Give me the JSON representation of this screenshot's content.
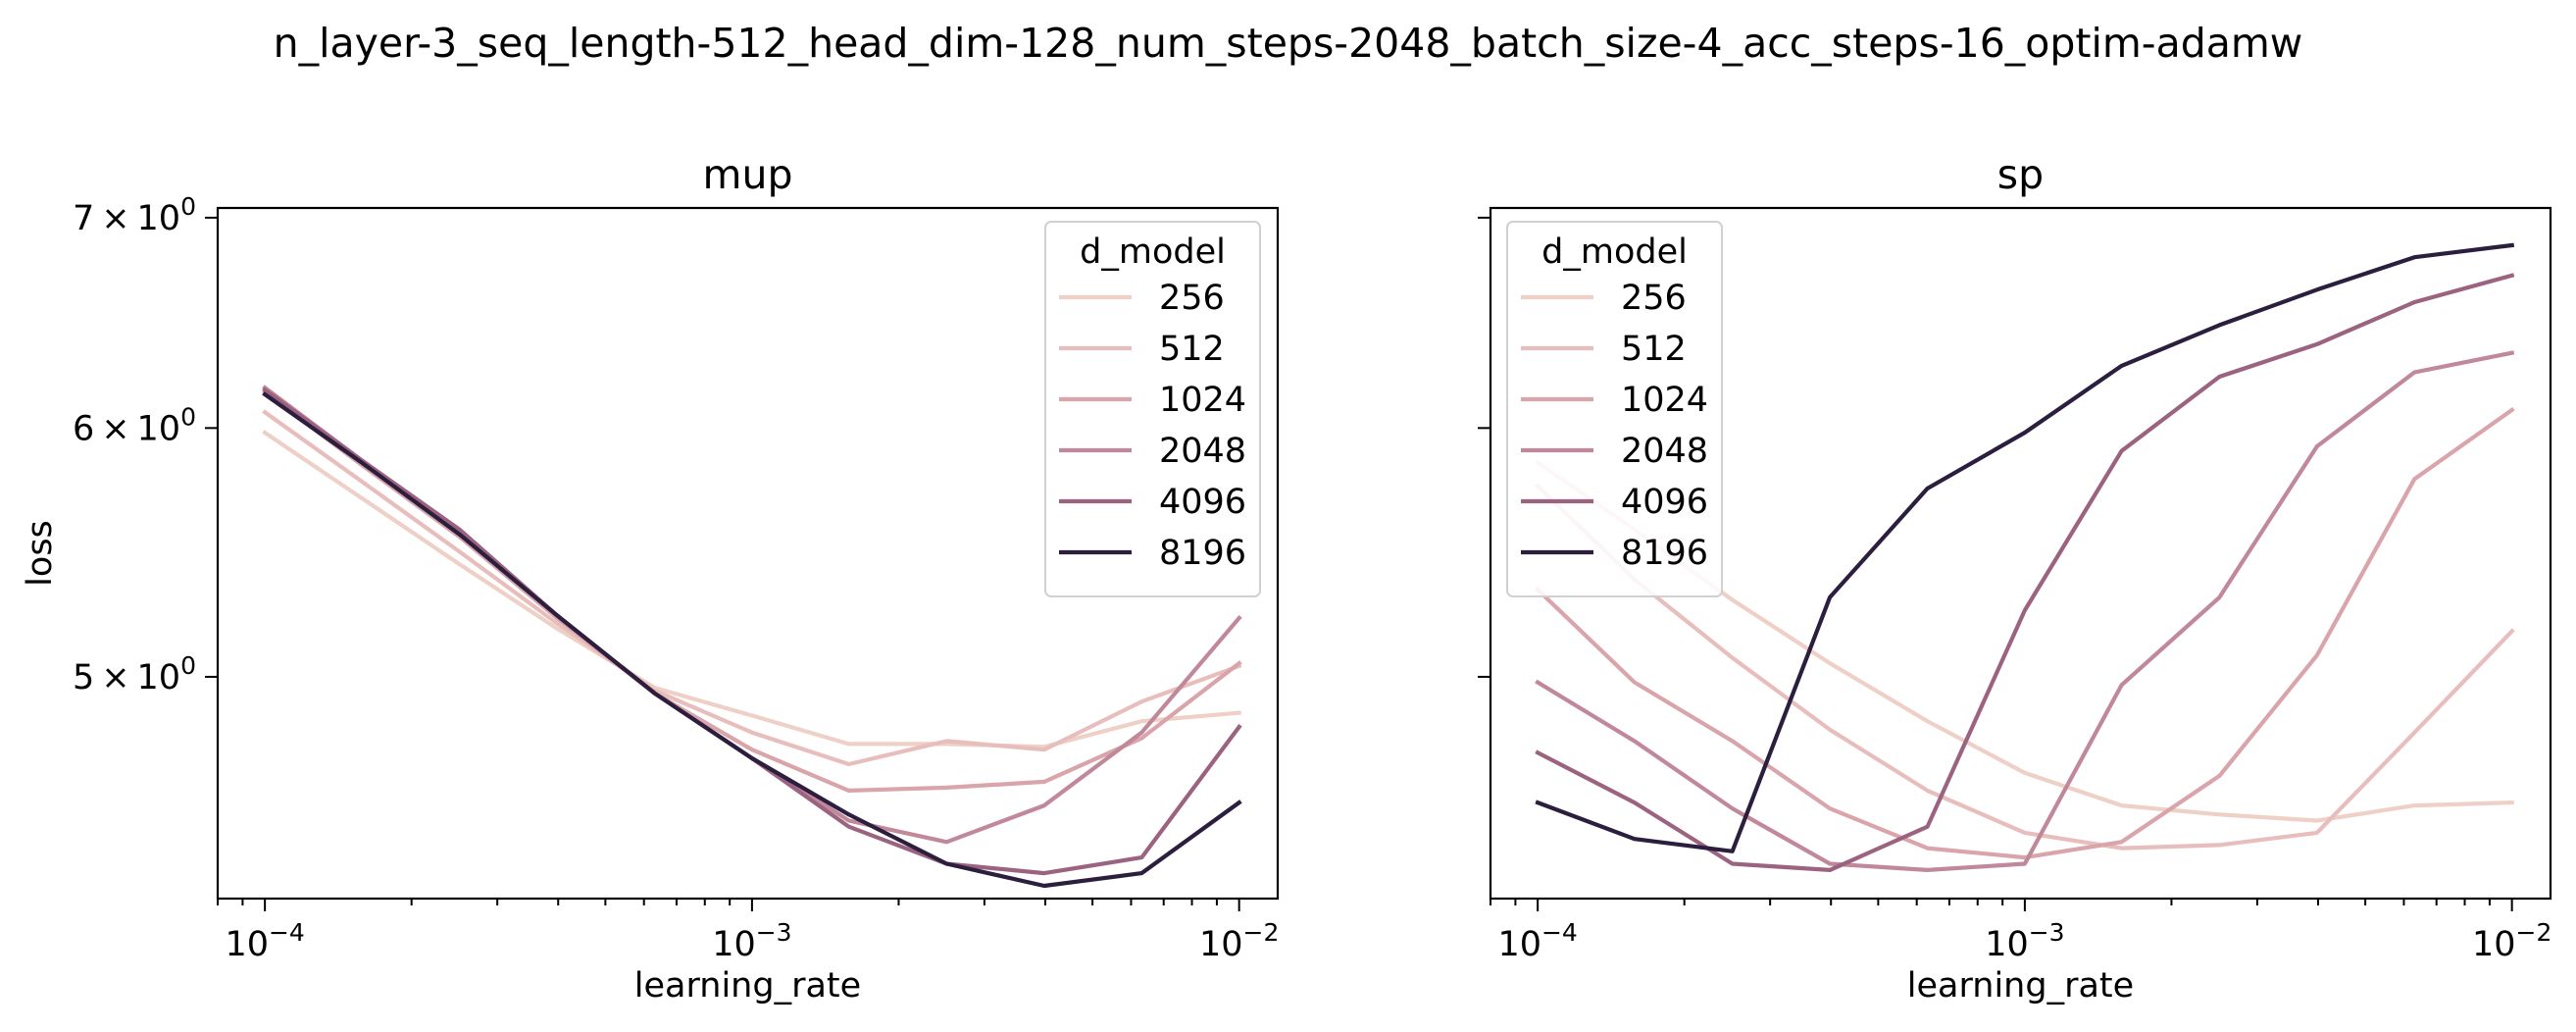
{
  "figure": {
    "suptitle": "n_layer-3_seq_length-512_head_dim-128_num_steps-2048_batch_size-4_acc_steps-16_optim-adamw"
  },
  "chart_data": [
    {
      "type": "line",
      "title": "mup",
      "xlabel": "learning_rate",
      "ylabel": "loss",
      "xscale": "log",
      "yscale": "log",
      "xlim": [
        8e-05,
        0.012
      ],
      "ylim": [
        4.25,
        7.05
      ],
      "xticks": [
        {
          "value": 0.0001,
          "base": "10",
          "exp": "−4"
        },
        {
          "value": 0.001,
          "base": "10",
          "exp": "−3"
        },
        {
          "value": 0.01,
          "base": "10",
          "exp": "−2"
        }
      ],
      "yticks": [
        {
          "value": 7,
          "mant": "7",
          "base": "10",
          "exp": "0"
        },
        {
          "value": 6,
          "mant": "6",
          "base": "10",
          "exp": "0"
        },
        {
          "value": 5,
          "mant": "5",
          "base": "10",
          "exp": "0"
        }
      ],
      "show_yticklabels": true,
      "legend": {
        "title": "d_model",
        "location": "upper right"
      },
      "x": [
        0.0001,
        0.000158,
        0.000251,
        0.000398,
        0.000631,
        0.001,
        0.00158,
        0.00251,
        0.00398,
        0.00631,
        0.01
      ],
      "series": [
        {
          "name": "256",
          "color": "#eed0c7",
          "values": [
            5.98,
            5.7,
            5.43,
            5.18,
            4.96,
            4.86,
            4.76,
            4.76,
            4.75,
            4.84,
            4.87
          ]
        },
        {
          "name": "512",
          "color": "#e8bebd",
          "values": [
            6.07,
            5.77,
            5.48,
            5.2,
            4.95,
            4.8,
            4.69,
            4.77,
            4.74,
            4.91,
            5.04
          ]
        },
        {
          "name": "1024",
          "color": "#d9a4aa",
          "values": [
            6.16,
            5.84,
            5.54,
            5.22,
            4.94,
            4.74,
            4.6,
            4.61,
            4.63,
            4.78,
            5.05
          ]
        },
        {
          "name": "2048",
          "color": "#c18899",
          "values": [
            6.18,
            5.86,
            5.56,
            5.23,
            4.94,
            4.71,
            4.5,
            4.43,
            4.55,
            4.8,
            5.22
          ]
        },
        {
          "name": "4096",
          "color": "#9b637f",
          "values": [
            6.17,
            5.86,
            5.57,
            5.23,
            4.94,
            4.71,
            4.48,
            4.36,
            4.33,
            4.38,
            4.82
          ]
        },
        {
          "name": "8196",
          "color": "#2c1e3e",
          "values": [
            6.15,
            5.85,
            5.55,
            5.23,
            4.94,
            4.71,
            4.52,
            4.36,
            4.29,
            4.33,
            4.56
          ]
        }
      ]
    },
    {
      "type": "line",
      "title": "sp",
      "xlabel": "learning_rate",
      "ylabel": "",
      "xscale": "log",
      "yscale": "log",
      "xlim": [
        8e-05,
        0.012
      ],
      "ylim": [
        4.25,
        7.05
      ],
      "xticks": [
        {
          "value": 0.0001,
          "base": "10",
          "exp": "−4"
        },
        {
          "value": 0.001,
          "base": "10",
          "exp": "−3"
        },
        {
          "value": 0.01,
          "base": "10",
          "exp": "−2"
        }
      ],
      "yticks": [
        {
          "value": 7,
          "mant": "",
          "base": "",
          "exp": ""
        },
        {
          "value": 6,
          "mant": "",
          "base": "",
          "exp": ""
        },
        {
          "value": 5,
          "mant": "",
          "base": "",
          "exp": ""
        }
      ],
      "show_yticklabels": false,
      "legend": {
        "title": "d_model",
        "location": "upper left"
      },
      "x": [
        0.0001,
        0.000158,
        0.000251,
        0.000398,
        0.000631,
        0.001,
        0.00158,
        0.00251,
        0.00398,
        0.00631,
        0.01
      ],
      "series": [
        {
          "name": "256",
          "color": "#eed0c7",
          "values": [
            5.85,
            5.57,
            5.29,
            5.05,
            4.84,
            4.66,
            4.55,
            4.52,
            4.5,
            4.55,
            4.56
          ]
        },
        {
          "name": "512",
          "color": "#e8bebd",
          "values": [
            5.75,
            5.37,
            5.07,
            4.81,
            4.6,
            4.46,
            4.41,
            4.42,
            4.46,
            4.8,
            5.17
          ]
        },
        {
          "name": "1024",
          "color": "#d9a4aa",
          "values": [
            5.33,
            4.98,
            4.77,
            4.54,
            4.41,
            4.38,
            4.43,
            4.65,
            5.08,
            5.78,
            6.08
          ]
        },
        {
          "name": "2048",
          "color": "#c18899",
          "values": [
            4.98,
            4.77,
            4.54,
            4.36,
            4.34,
            4.36,
            4.97,
            5.3,
            5.92,
            6.25,
            6.34
          ]
        },
        {
          "name": "4096",
          "color": "#9b637f",
          "values": [
            4.73,
            4.56,
            4.36,
            4.34,
            4.48,
            5.25,
            5.9,
            6.23,
            6.38,
            6.58,
            6.71
          ]
        },
        {
          "name": "8196",
          "color": "#2c1e3e",
          "values": [
            4.56,
            4.44,
            4.4,
            5.3,
            5.74,
            5.98,
            6.28,
            6.47,
            6.64,
            6.8,
            6.86
          ]
        }
      ]
    }
  ]
}
